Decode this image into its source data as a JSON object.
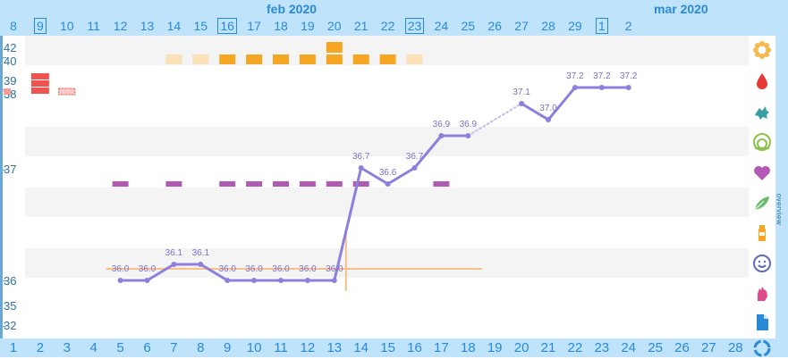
{
  "header": {
    "month_feb": "feb 2020",
    "month_mar": "mar 2020",
    "dates": [
      "8",
      "9",
      "10",
      "11",
      "12",
      "13",
      "14",
      "15",
      "16",
      "17",
      "18",
      "19",
      "20",
      "21",
      "22",
      "23",
      "24",
      "25",
      "26",
      "27",
      "28",
      "29",
      "1",
      "2"
    ]
  },
  "footer": {
    "cycle_days": [
      "1",
      "2",
      "3",
      "4",
      "5",
      "6",
      "7",
      "8",
      "9",
      "10",
      "11",
      "12",
      "13",
      "14",
      "15",
      "16",
      "17",
      "18",
      "19",
      "20",
      "21",
      "22",
      "23",
      "24",
      "25",
      "26",
      "27",
      "28"
    ]
  },
  "y_axis": {
    "labels": [
      "42",
      "40",
      "39",
      "38",
      "37",
      "36",
      "35",
      "32"
    ]
  },
  "sidebar": {
    "overview_label": "overview",
    "icons": [
      "flower-icon",
      "drop-icon",
      "splash-icon",
      "cervix-icon",
      "heart-icon",
      "leaf-icon",
      "bottle-icon",
      "smiley-icon",
      "hand-icon",
      "document-icon",
      "cycle-icon"
    ]
  },
  "chart_data": {
    "type": "line",
    "x": [
      5,
      6,
      7,
      8,
      9,
      10,
      11,
      12,
      13,
      14,
      15,
      16,
      17,
      18,
      20,
      21,
      22,
      23,
      24
    ],
    "temperatures": [
      36.0,
      36.0,
      36.1,
      36.1,
      36.0,
      36.0,
      36.0,
      36.0,
      36.0,
      36.7,
      36.6,
      36.7,
      36.9,
      36.9,
      37.1,
      37.0,
      37.2,
      37.2,
      37.2
    ],
    "temperature_labels": [
      "36.0",
      "36.0",
      "36.1",
      "36.1",
      "36.0",
      "36.0",
      "36.0",
      "36.0",
      "36.0",
      "36.7",
      "36.6",
      "36.7",
      "36.9",
      "36.9",
      "37.1",
      "37.0",
      "37.2",
      "37.2",
      "37.2"
    ],
    "line_color": "#8f7fdc",
    "coverline_color": "#f5c08a",
    "bleeding_color": "#ef5350",
    "mucus_color": "#f5a623",
    "mucus_light_color": "#fbe1b8",
    "sex_color": "#b259b5"
  }
}
